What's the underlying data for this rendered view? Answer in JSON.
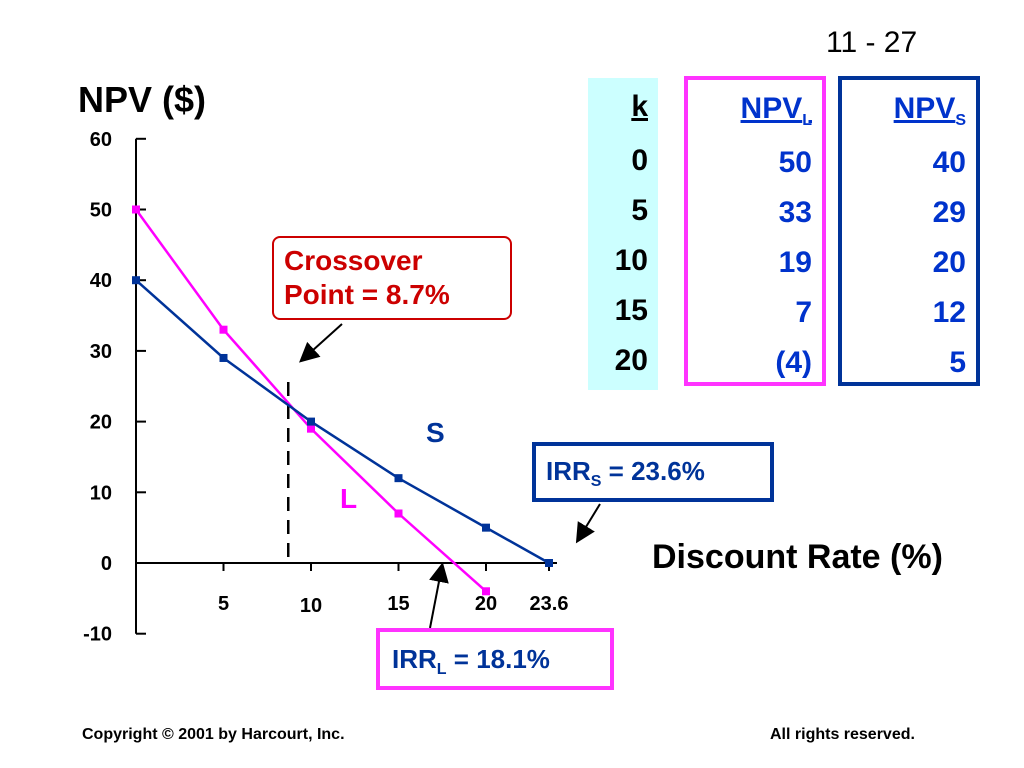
{
  "slide_number": "11 - 27",
  "chart_data": {
    "type": "line",
    "ylabel": "NPV ($)",
    "xlabel": "Discount Rate (%)",
    "ylim": [
      -10,
      60
    ],
    "xlim": [
      0,
      23.6
    ],
    "y_ticks": [
      60,
      50,
      40,
      30,
      20,
      10,
      0,
      -10
    ],
    "x_ticks": [
      {
        "value": 5,
        "label": "5"
      },
      {
        "value": 10,
        "label": "10"
      },
      {
        "value": 15,
        "label": "15"
      },
      {
        "value": 20,
        "label": "20"
      },
      {
        "value": 23.6,
        "label": "23.6"
      }
    ],
    "series": [
      {
        "name": "L",
        "color": "#ff00ff",
        "x": [
          0,
          5,
          10,
          15,
          20
        ],
        "y": [
          50,
          33,
          19,
          7,
          -4
        ]
      },
      {
        "name": "S",
        "color": "#003399",
        "x": [
          0,
          5,
          10,
          15,
          20,
          23.6
        ],
        "y": [
          40,
          29,
          20,
          12,
          5,
          0
        ]
      }
    ],
    "crossover_rate": 8.7
  },
  "table": {
    "k_header": "k",
    "npvl_header": "NPV",
    "npvl_sub": "L",
    "npvs_header": "NPV",
    "npvs_sub": "S",
    "k": [
      "0",
      "5",
      "10",
      "15",
      "20"
    ],
    "npvl": [
      "50",
      "33",
      "19",
      "7",
      "(4)"
    ],
    "npvs": [
      "40",
      "29",
      "20",
      "12",
      "5"
    ]
  },
  "annotations": {
    "crossover_line1": "Crossover",
    "crossover_line2": "Point  =  8.7%",
    "irrs_prefix": "IRR",
    "irrs_sub": "S",
    "irrs_value": " = 23.6%",
    "irrl_prefix": "IRR",
    "irrl_sub": "L",
    "irrl_value": " = 18.1%"
  },
  "footer": {
    "left": "Copyright © 2001 by Harcourt, Inc.",
    "right": "All rights reserved."
  }
}
